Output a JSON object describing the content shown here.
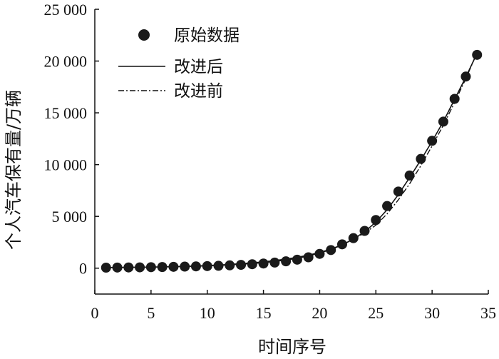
{
  "chart_data": {
    "type": "scatter",
    "title": "",
    "xlabel": "时间序号",
    "ylabel": "个人汽车保有量/万辆",
    "xlim": [
      0,
      35
    ],
    "ylim": [
      -2500,
      25000
    ],
    "x_ticks": [
      0,
      5,
      10,
      15,
      20,
      25,
      30,
      35
    ],
    "x_tick_labels": [
      "0",
      "5",
      "10",
      "15",
      "20",
      "25",
      "30",
      "35"
    ],
    "y_ticks": [
      0,
      5000,
      10000,
      15000,
      20000,
      25000
    ],
    "y_tick_labels": [
      "0",
      "5 000",
      "10 000",
      "15 000",
      "20 000",
      "25 000"
    ],
    "grid": false,
    "legend_position": "top-left",
    "series": [
      {
        "name": "原始数据",
        "style": "markers",
        "x": [
          1,
          2,
          3,
          4,
          5,
          6,
          7,
          8,
          9,
          10,
          11,
          12,
          13,
          14,
          15,
          16,
          17,
          18,
          19,
          20,
          21,
          22,
          23,
          24,
          25,
          26,
          27,
          28,
          29,
          30,
          31,
          32,
          33,
          34
        ],
        "y": [
          50,
          60,
          70,
          80,
          95,
          110,
          130,
          150,
          175,
          200,
          230,
          270,
          320,
          380,
          450,
          540,
          660,
          820,
          1050,
          1380,
          1750,
          2300,
          2900,
          3600,
          4650,
          6000,
          7400,
          8950,
          10550,
          12300,
          14150,
          16350,
          18500,
          20600
        ]
      },
      {
        "name": "改进后",
        "style": "solid",
        "x": [
          1,
          2,
          3,
          4,
          5,
          6,
          7,
          8,
          9,
          10,
          11,
          12,
          13,
          14,
          15,
          16,
          17,
          18,
          19,
          20,
          21,
          22,
          23,
          24,
          25,
          26,
          27,
          28,
          29,
          30,
          31,
          32,
          33,
          34
        ],
        "y": [
          60,
          70,
          80,
          90,
          105,
          120,
          140,
          165,
          195,
          230,
          270,
          320,
          380,
          450,
          540,
          650,
          790,
          960,
          1180,
          1460,
          1800,
          2250,
          2800,
          3520,
          4450,
          5650,
          7100,
          8750,
          10450,
          12250,
          14150,
          16300,
          18450,
          20750
        ]
      },
      {
        "name": "改进前",
        "style": "dash-dot",
        "x": [
          1,
          2,
          3,
          4,
          5,
          6,
          7,
          8,
          9,
          10,
          11,
          12,
          13,
          14,
          15,
          16,
          17,
          18,
          19,
          20,
          21,
          22,
          23,
          24,
          25,
          26,
          27,
          28,
          29,
          30,
          31,
          32,
          33,
          34
        ],
        "y": [
          60,
          70,
          80,
          90,
          105,
          125,
          150,
          180,
          215,
          260,
          310,
          370,
          440,
          520,
          620,
          740,
          880,
          1050,
          1260,
          1520,
          1850,
          2270,
          2780,
          3400,
          4150,
          5250,
          6600,
          8150,
          9900,
          11800,
          13800,
          16000,
          18300,
          20800
        ]
      }
    ]
  }
}
